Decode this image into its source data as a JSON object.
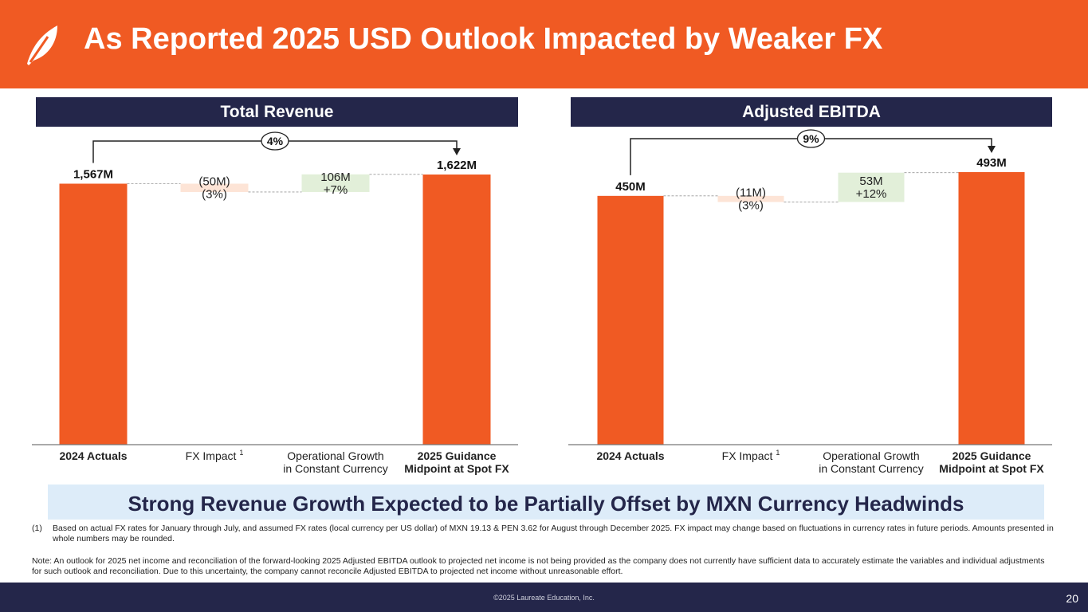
{
  "header": {
    "title": "As Reported 2025 USD Outlook Impacted by Weaker FX",
    "logo_icon": "leaf-logo-icon"
  },
  "colors": {
    "brand_orange": "#f05a23",
    "navy": "#24264a",
    "neg_fill": "#fde4d6",
    "pos_fill": "#e2efd9",
    "banner_bg": "#ddecf9"
  },
  "chart_data": [
    {
      "type": "waterfall",
      "title": "Total Revenue",
      "categories": [
        "2024 Actuals",
        "FX Impact",
        "Operational Growth in Constant Currency",
        "2025 Guidance Midpoint at Spot FX"
      ],
      "category_lines": [
        [
          "2024 Actuals"
        ],
        [
          "FX Impact "
        ],
        [
          "Operational Growth",
          "in Constant Currency"
        ],
        [
          "2025 Guidance",
          "Midpoint at Spot FX"
        ]
      ],
      "category_bold": [
        true,
        false,
        false,
        true
      ],
      "category_sup": [
        "",
        "1",
        "",
        ""
      ],
      "values": [
        1567,
        -50,
        106,
        1622
      ],
      "kinds": [
        "total",
        "delta",
        "delta",
        "total"
      ],
      "labels": [
        [
          "1,567M"
        ],
        [
          "(50M)",
          "(3%)"
        ],
        [
          "106M",
          "+7%"
        ],
        [
          "1,622M"
        ]
      ],
      "growth_label": "4%"
    },
    {
      "type": "waterfall",
      "title": "Adjusted EBITDA",
      "categories": [
        "2024 Actuals",
        "FX Impact",
        "Operational Growth in Constant Currency",
        "2025 Guidance Midpoint at Spot FX"
      ],
      "category_lines": [
        [
          "2024 Actuals"
        ],
        [
          "FX Impact "
        ],
        [
          "Operational Growth",
          "in Constant Currency"
        ],
        [
          "2025 Guidance",
          "Midpoint at Spot FX"
        ]
      ],
      "category_bold": [
        true,
        false,
        false,
        true
      ],
      "category_sup": [
        "",
        "1",
        "",
        ""
      ],
      "values": [
        450,
        -11,
        53,
        493
      ],
      "kinds": [
        "total",
        "delta",
        "delta",
        "total"
      ],
      "labels": [
        [
          "450M"
        ],
        [
          "(11M)",
          "(3%)"
        ],
        [
          "53M",
          "+12%"
        ],
        [
          "493M"
        ]
      ],
      "growth_label": "9%"
    }
  ],
  "banner": "Strong Revenue Growth Expected to be Partially Offset by MXN Currency Headwinds",
  "footnotes": {
    "fn1_num": "(1)",
    "fn1_text": "Based on actual FX rates for January through July, and assumed FX rates (local currency per US dollar) of MXN 19.13 & PEN 3.62 for August through December 2025. FX impact may change based on fluctuations in currency rates in future periods. Amounts presented in whole numbers may be rounded.",
    "note": "Note: An outlook for 2025 net income and reconciliation of the forward-looking 2025 Adjusted EBITDA outlook to projected net income is not being provided as the company does not currently have sufficient data to accurately estimate the variables and individual adjustments for such outlook and reconciliation.  Due to this uncertainty, the company cannot reconcile Adjusted EBITDA to projected net income without unreasonable effort."
  },
  "footer": {
    "copyright": "©2025 Laureate Education, Inc.",
    "page_number": "20"
  }
}
